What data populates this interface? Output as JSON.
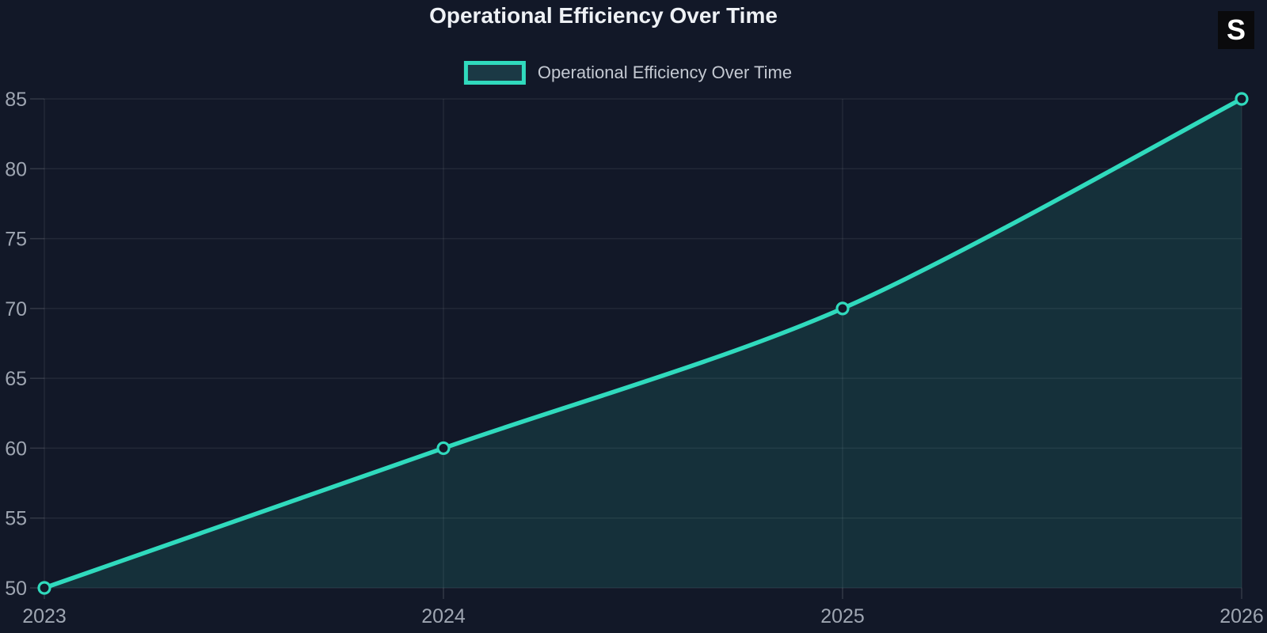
{
  "header": {
    "title": "Operational Efficiency Over Time"
  },
  "legend": {
    "label": "Operational Efficiency Over Time"
  },
  "overlay": {
    "badge_label": "S"
  },
  "colors": {
    "background": "#121828",
    "line": "#30dabd",
    "area_fill": "rgba(47, 217, 189, 0.13)",
    "grid": "rgba(255, 255, 255, 0.07)",
    "tick": "rgba(255, 255, 255, 0.14)",
    "axis_label": "#9fa6b2",
    "title_text": "#eef1f5",
    "legend_text": "#c4c9d2",
    "marker_fill": "#121828",
    "badge_bg": "#0a0a0c",
    "badge_text": "#ffffff"
  },
  "chart_data": {
    "type": "area",
    "title": "Operational Efficiency Over Time",
    "x": [
      2023,
      2024,
      2025,
      2026
    ],
    "values": [
      50,
      60,
      70,
      85
    ],
    "series_name": "Operational Efficiency Over Time",
    "xlabel": "",
    "ylabel": "",
    "ylim": [
      50,
      85
    ],
    "yticks": [
      50,
      55,
      60,
      65,
      70,
      75,
      80,
      85
    ],
    "xtick_labels": [
      "2023",
      "2024",
      "2025",
      "2026"
    ],
    "grid": true,
    "smooth": true,
    "legend_position": "top-center"
  }
}
